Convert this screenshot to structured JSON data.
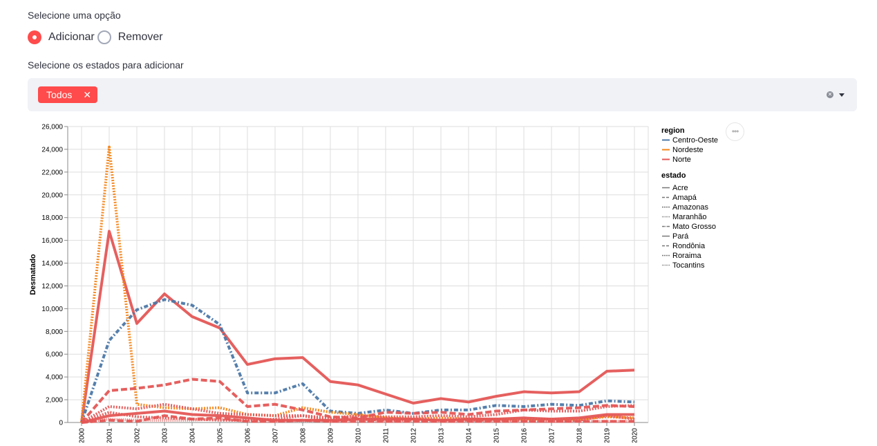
{
  "controls": {
    "option_label": "Selecione uma opção",
    "options": [
      "Adicionar",
      "Remover"
    ],
    "selected_option": "Adicionar",
    "states_label": "Selecione os estados para adicionar",
    "selected_tags": [
      "Todos"
    ]
  },
  "colors": {
    "accent": "#ff4b4b",
    "Centro-Oeste": "#4c78a8",
    "Nordeste": "#f58518",
    "Norte": "#e45756"
  },
  "chart_data": {
    "type": "line",
    "ylabel": "Desmatado",
    "xlabel": "",
    "ylim": [
      0,
      26000
    ],
    "y_ticks": [
      "0",
      "2,000",
      "4,000",
      "6,000",
      "8,000",
      "10,000",
      "12,000",
      "14,000",
      "16,000",
      "18,000",
      "20,000",
      "22,000",
      "24,000",
      "26,000"
    ],
    "x": [
      "2000",
      "2001",
      "2002",
      "2003",
      "2004",
      "2005",
      "2006",
      "2007",
      "2008",
      "2009",
      "2010",
      "2011",
      "2012",
      "2013",
      "2014",
      "2015",
      "2016",
      "2017",
      "2018",
      "2019",
      "2020"
    ],
    "legend": {
      "region_title": "region",
      "regions": [
        "Centro-Oeste",
        "Nordeste",
        "Norte"
      ],
      "estado_title": "estado",
      "estados": [
        "Acre",
        "Amapá",
        "Amazonas",
        "Maranhão",
        "Mato Grosso",
        "Pará",
        "Rondônia",
        "Roraima",
        "Tocantins"
      ]
    },
    "series": [
      {
        "name": "Pará",
        "region": "Norte",
        "dash": "solid",
        "values": [
          0,
          16800,
          8700,
          11300,
          9300,
          8300,
          5100,
          5600,
          5700,
          3600,
          3300,
          2500,
          1700,
          2100,
          1800,
          2300,
          2700,
          2600,
          2700,
          4500,
          4600
        ]
      },
      {
        "name": "Mato Grosso",
        "region": "Centro-Oeste",
        "dash": "dashdot",
        "values": [
          0,
          7200,
          9900,
          10800,
          10300,
          8600,
          2600,
          2600,
          3400,
          1000,
          800,
          1100,
          800,
          1100,
          1100,
          1500,
          1400,
          1600,
          1500,
          1900,
          1800
        ]
      },
      {
        "name": "Maranhão",
        "region": "Nordeste",
        "dash": "dotted",
        "values": [
          0,
          24200,
          1600,
          1300,
          1200,
          1300,
          700,
          600,
          1300,
          900,
          700,
          400,
          300,
          400,
          300,
          300,
          300,
          300,
          300,
          500,
          400
        ]
      },
      {
        "name": "Rondônia",
        "region": "Norte",
        "dash": "dashed",
        "values": [
          0,
          2800,
          3000,
          3300,
          3800,
          3600,
          1400,
          1600,
          1100,
          500,
          400,
          900,
          800,
          900,
          700,
          1000,
          1100,
          1200,
          1300,
          1500,
          1400
        ]
      },
      {
        "name": "Amazonas",
        "region": "Norte",
        "dash": "dotted",
        "values": [
          0,
          1400,
          1200,
          1600,
          1200,
          800,
          700,
          600,
          600,
          400,
          600,
          500,
          500,
          600,
          500,
          700,
          1100,
          1000,
          1000,
          1400,
          1500
        ]
      },
      {
        "name": "Acre",
        "region": "Norte",
        "dash": "solid",
        "values": [
          0,
          600,
          800,
          1000,
          700,
          600,
          400,
          200,
          200,
          200,
          300,
          300,
          300,
          200,
          300,
          300,
          400,
          300,
          400,
          700,
          700
        ]
      },
      {
        "name": "Roraima",
        "region": "Norte",
        "dash": "dotted",
        "values": [
          0,
          900,
          500,
          400,
          300,
          200,
          200,
          300,
          600,
          100,
          300,
          200,
          200,
          200,
          200,
          200,
          200,
          100,
          200,
          600,
          300
        ]
      },
      {
        "name": "Tocantins",
        "region": "Norte",
        "dash": "dotted2",
        "values": [
          0,
          300,
          200,
          200,
          200,
          300,
          100,
          100,
          100,
          100,
          100,
          100,
          100,
          100,
          100,
          100,
          100,
          100,
          100,
          100,
          100
        ]
      },
      {
        "name": "Amapá",
        "region": "Norte",
        "dash": "dashed",
        "values": [
          0,
          200,
          100,
          600,
          300,
          400,
          100,
          100,
          200,
          100,
          100,
          100,
          100,
          100,
          100,
          100,
          100,
          100,
          100,
          100,
          100
        ]
      }
    ]
  }
}
